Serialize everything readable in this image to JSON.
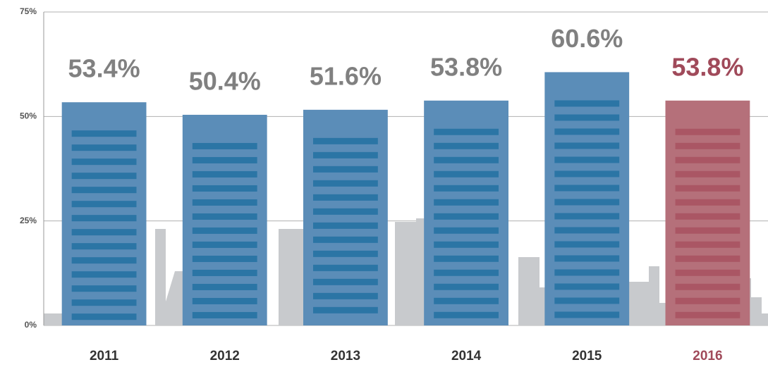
{
  "chart_data": {
    "type": "bar",
    "categories": [
      "2011",
      "2012",
      "2013",
      "2014",
      "2015",
      "2016"
    ],
    "values": [
      53.4,
      50.4,
      51.6,
      53.8,
      60.6,
      53.8
    ],
    "value_labels": [
      "53.4%",
      "50.4%",
      "51.6%",
      "53.8%",
      "60.6%",
      "53.8%"
    ],
    "colors": [
      "#5b8db8",
      "#5b8db8",
      "#5b8db8",
      "#5b8db8",
      "#5b8db8",
      "#b5707a"
    ],
    "ylim": [
      0,
      75
    ],
    "yticks": [
      {
        "value": 0,
        "label": "0%"
      },
      {
        "value": 25,
        "label": "25%"
      },
      {
        "value": 50,
        "label": "50%"
      },
      {
        "value": 75,
        "label": "75%"
      }
    ],
    "grid": true
  }
}
